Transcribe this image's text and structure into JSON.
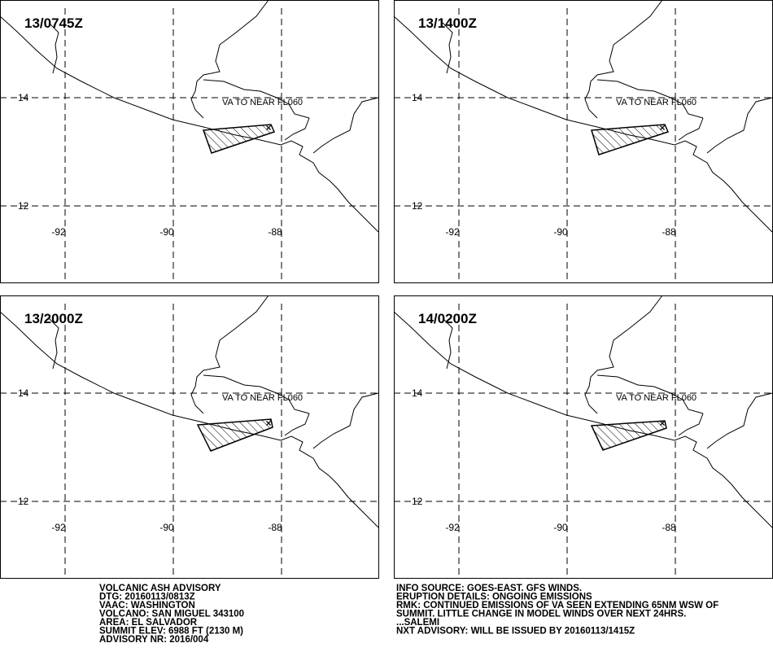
{
  "panels": [
    {
      "title": "13/0745Z",
      "label": "VA TO NEAR FL060"
    },
    {
      "title": "13/1400Z",
      "label": "VA TO NEAR FL060"
    },
    {
      "title": "13/2000Z",
      "label": "VA TO NEAR FL060"
    },
    {
      "title": "14/0200Z",
      "label": "VA TO NEAR FL060"
    }
  ],
  "grid": {
    "lat_labels": [
      "14",
      "12"
    ],
    "lon_labels": [
      "-92",
      "-90",
      "-88"
    ]
  },
  "footer": {
    "left": [
      "VOLCANIC ASH ADVISORY",
      "DTG: 20160113/0813Z",
      "VAAC: WASHINGTON",
      "VOLCANO: SAN MIGUEL 343100",
      "AREA: EL SALVADOR",
      "SUMMIT ELEV: 6988 FT (2130 M)",
      "ADVISORY NR: 2016/004"
    ],
    "right": [
      "INFO SOURCE: GOES-EAST. GFS WINDS.",
      "ERUPTION DETAILS: ONGOING EMISSIONS",
      "RMK: CONTINUED EMISSIONS OF VA SEEN EXTENDING 65NM WSW OF",
      "SUMMIT. LITTLE CHANGE IN MODEL WINDS OVER NEXT 24HRS.",
      "...SALEMI",
      "NXT ADVISORY: WILL BE ISSUED BY 20160113/1415Z"
    ]
  }
}
